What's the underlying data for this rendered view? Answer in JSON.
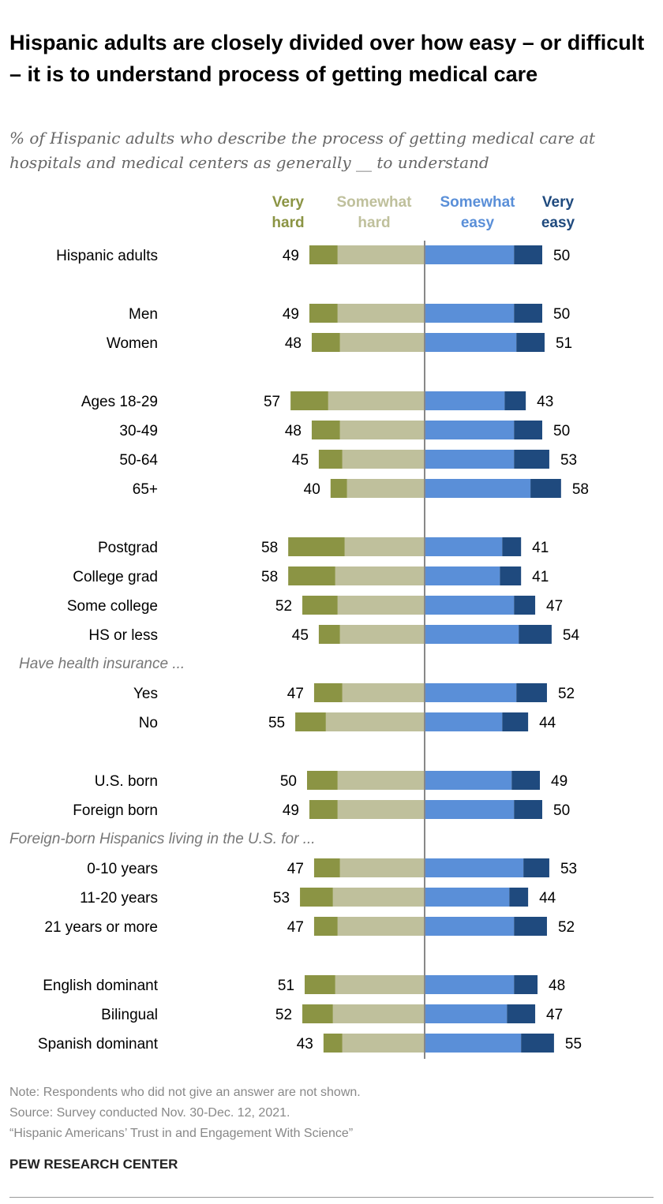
{
  "title": "Hispanic adults are closely divided over how easy – or difficult – it is to understand process of getting medical care",
  "subtitle": "% of Hispanic adults who describe the process of getting medical care at hospitals and medical centers as generally __ to understand",
  "legend": {
    "very_hard": "Very hard",
    "somewhat_hard": "Somewhat hard",
    "somewhat_easy": "Somewhat easy",
    "very_easy": "Very easy"
  },
  "colors": {
    "very_hard": "#8b9444",
    "somewhat_hard": "#bfc09c",
    "somewhat_easy": "#5a8fd8",
    "very_easy": "#1f4a7e",
    "axis": "#888888"
  },
  "chart_data": {
    "type": "bar",
    "subtype": "diverging-stacked",
    "series": [
      "Very hard",
      "Somewhat hard",
      "Somewhat easy",
      "Very easy"
    ],
    "groups": [
      {
        "heading": "",
        "rows": [
          {
            "label": "Hispanic adults",
            "very_hard": 12,
            "somewhat_hard": 37,
            "hard_total": 49,
            "somewhat_easy": 38,
            "very_easy": 12,
            "easy_total": 50
          }
        ]
      },
      {
        "heading": "",
        "rows": [
          {
            "label": "Men",
            "very_hard": 12,
            "somewhat_hard": 37,
            "hard_total": 49,
            "somewhat_easy": 38,
            "very_easy": 12,
            "easy_total": 50
          },
          {
            "label": "Women",
            "very_hard": 12,
            "somewhat_hard": 36,
            "hard_total": 48,
            "somewhat_easy": 39,
            "very_easy": 12,
            "easy_total": 51
          }
        ]
      },
      {
        "heading": "",
        "rows": [
          {
            "label": "Ages 18-29",
            "very_hard": 16,
            "somewhat_hard": 41,
            "hard_total": 57,
            "somewhat_easy": 34,
            "very_easy": 9,
            "easy_total": 43
          },
          {
            "label": "30-49",
            "very_hard": 12,
            "somewhat_hard": 36,
            "hard_total": 48,
            "somewhat_easy": 38,
            "very_easy": 12,
            "easy_total": 50
          },
          {
            "label": "50-64",
            "very_hard": 10,
            "somewhat_hard": 35,
            "hard_total": 45,
            "somewhat_easy": 38,
            "very_easy": 15,
            "easy_total": 53
          },
          {
            "label": "65+",
            "very_hard": 7,
            "somewhat_hard": 33,
            "hard_total": 40,
            "somewhat_easy": 45,
            "very_easy": 13,
            "easy_total": 58
          }
        ]
      },
      {
        "heading": "",
        "rows": [
          {
            "label": "Postgrad",
            "very_hard": 24,
            "somewhat_hard": 34,
            "hard_total": 58,
            "somewhat_easy": 33,
            "very_easy": 8,
            "easy_total": 41
          },
          {
            "label": "College grad",
            "very_hard": 20,
            "somewhat_hard": 38,
            "hard_total": 58,
            "somewhat_easy": 32,
            "very_easy": 9,
            "easy_total": 41
          },
          {
            "label": "Some college",
            "very_hard": 15,
            "somewhat_hard": 37,
            "hard_total": 52,
            "somewhat_easy": 38,
            "very_easy": 9,
            "easy_total": 47
          },
          {
            "label": "HS or less",
            "very_hard": 9,
            "somewhat_hard": 36,
            "hard_total": 45,
            "somewhat_easy": 40,
            "very_easy": 14,
            "easy_total": 54
          }
        ]
      },
      {
        "heading": "Have health insurance ...",
        "rows": [
          {
            "label": "Yes",
            "very_hard": 12,
            "somewhat_hard": 35,
            "hard_total": 47,
            "somewhat_easy": 39,
            "very_easy": 13,
            "easy_total": 52
          },
          {
            "label": "No",
            "very_hard": 13,
            "somewhat_hard": 42,
            "hard_total": 55,
            "somewhat_easy": 33,
            "very_easy": 11,
            "easy_total": 44
          }
        ]
      },
      {
        "heading": "",
        "rows": [
          {
            "label": "U.S. born",
            "very_hard": 13,
            "somewhat_hard": 37,
            "hard_total": 50,
            "somewhat_easy": 37,
            "very_easy": 12,
            "easy_total": 49
          },
          {
            "label": "Foreign born",
            "very_hard": 12,
            "somewhat_hard": 37,
            "hard_total": 49,
            "somewhat_easy": 38,
            "very_easy": 12,
            "easy_total": 50
          }
        ]
      },
      {
        "heading": "Foreign-born Hispanics living in the U.S. for ...",
        "rows": [
          {
            "label": "0-10 years",
            "very_hard": 11,
            "somewhat_hard": 36,
            "hard_total": 47,
            "somewhat_easy": 42,
            "very_easy": 11,
            "easy_total": 53
          },
          {
            "label": "11-20 years",
            "very_hard": 14,
            "somewhat_hard": 39,
            "hard_total": 53,
            "somewhat_easy": 36,
            "very_easy": 8,
            "easy_total": 44
          },
          {
            "label": "21 years or more",
            "very_hard": 10,
            "somewhat_hard": 37,
            "hard_total": 47,
            "somewhat_easy": 38,
            "very_easy": 14,
            "easy_total": 52
          }
        ]
      },
      {
        "heading": "",
        "rows": [
          {
            "label": "English dominant",
            "very_hard": 13,
            "somewhat_hard": 38,
            "hard_total": 51,
            "somewhat_easy": 38,
            "very_easy": 10,
            "easy_total": 48
          },
          {
            "label": "Bilingual",
            "very_hard": 13,
            "somewhat_hard": 39,
            "hard_total": 52,
            "somewhat_easy": 35,
            "very_easy": 12,
            "easy_total": 47
          },
          {
            "label": "Spanish dominant",
            "very_hard": 8,
            "somewhat_hard": 35,
            "hard_total": 43,
            "somewhat_easy": 41,
            "very_easy": 14,
            "easy_total": 55
          }
        ]
      }
    ]
  },
  "notes": {
    "note": "Note: Respondents who did not give an answer are not shown.",
    "source": "Source: Survey conducted Nov. 30-Dec. 12, 2021.",
    "report": "“Hispanic Americans’ Trust in and Engagement With Science”",
    "brand": "PEW RESEARCH CENTER"
  }
}
